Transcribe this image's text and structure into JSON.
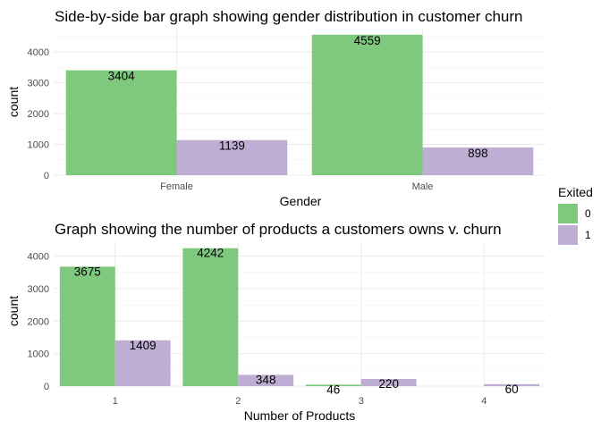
{
  "colors": {
    "exited_0": "#7FC97F",
    "exited_1": "#BEAED4"
  },
  "legend": {
    "title": "Exited",
    "items": [
      {
        "label": "0",
        "color": "#7FC97F"
      },
      {
        "label": "1",
        "color": "#BEAED4"
      }
    ]
  },
  "chart_data": [
    {
      "type": "bar",
      "title": "Side-by-side bar graph showing gender distribution in customer churn",
      "xlabel": "Gender",
      "ylabel": "count",
      "categories": [
        "Female",
        "Male"
      ],
      "yticks": [
        0,
        1000,
        2000,
        3000,
        4000
      ],
      "ylim": [
        0,
        4787
      ],
      "grid": true,
      "legend_position": "right",
      "series": [
        {
          "name": "0",
          "values": [
            3404,
            4559
          ]
        },
        {
          "name": "1",
          "values": [
            1139,
            898
          ]
        }
      ]
    },
    {
      "type": "bar",
      "title": "Graph showing the number of products a customers owns v. churn",
      "xlabel": "Number of Products",
      "ylabel": "count",
      "categories": [
        "1",
        "2",
        "3",
        "4"
      ],
      "yticks": [
        0,
        1000,
        2000,
        3000,
        4000
      ],
      "ylim": [
        0,
        4454
      ],
      "grid": true,
      "legend_position": "right",
      "series": [
        {
          "name": "0",
          "values": [
            3675,
            4242,
            46,
            null
          ]
        },
        {
          "name": "1",
          "values": [
            1409,
            348,
            220,
            60
          ]
        }
      ]
    }
  ]
}
